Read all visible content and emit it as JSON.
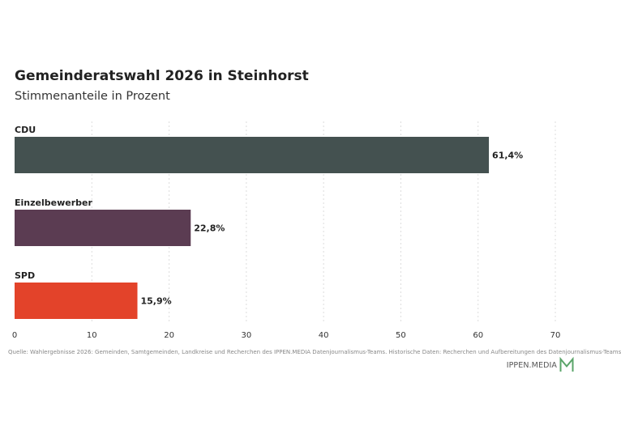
{
  "header": {
    "title": "Gemeinderatswahl 2026 in Steinhorst",
    "subtitle": "Stimmenanteile in Prozent"
  },
  "chart_data": {
    "type": "bar",
    "orientation": "horizontal",
    "categories": [
      "CDU",
      "Einzelbewerber",
      "SPD"
    ],
    "values": [
      61.4,
      22.8,
      15.9
    ],
    "value_labels": [
      "61,4%",
      "22,8%",
      "15,9%"
    ],
    "colors": [
      "#445150",
      "#5b3c52",
      "#e3432a"
    ],
    "xlim": [
      0,
      70
    ],
    "xticks": [
      0,
      10,
      20,
      30,
      40,
      50,
      60,
      70
    ],
    "xtick_labels": [
      "0",
      "10",
      "20",
      "30",
      "40",
      "50",
      "60",
      "70"
    ],
    "grid": "vertical dotted",
    "title": "Gemeinderatswahl 2026 in Steinhorst",
    "subtitle": "Stimmenanteile in Prozent",
    "xlabel": "",
    "ylabel": ""
  },
  "footer": {
    "source": "Quelle: Wahlergebnisse 2026: Gemeinden, Samtgemeinden, Landkreise und Recherchen des IPPEN.MEDIA Datenjournalismus-Teams. Historische Daten: Recherchen und Aufbereitungen des Datenjournalismus-Teams",
    "logo_text": "IPPEN.MEDIA",
    "logo_icon": "ippen-m-logo-icon",
    "logo_color": "#5aa469"
  }
}
